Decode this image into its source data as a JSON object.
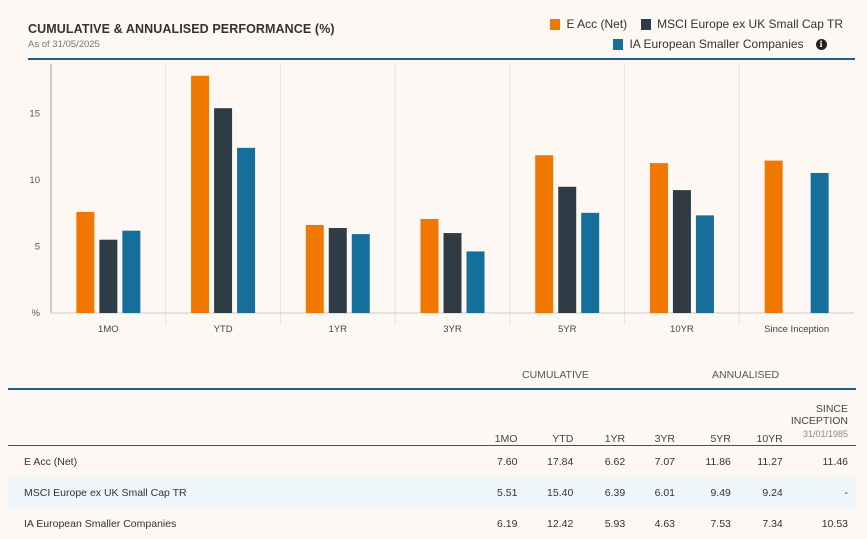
{
  "header": {
    "title": "CUMULATIVE & ANNUALISED PERFORMANCE (%)",
    "as_of": "As of 31/05/2025"
  },
  "legend": {
    "items": [
      {
        "label": "E Acc (Net)",
        "color": "#f07800"
      },
      {
        "label": "MSCI Europe ex UK Small Cap TR",
        "color": "#2f3c45"
      },
      {
        "label": "IA European Smaller Companies",
        "color": "#156f9a"
      }
    ],
    "info_icon": "info-icon"
  },
  "chart_data": {
    "type": "bar",
    "categories": [
      "1MO",
      "YTD",
      "1YR",
      "3YR",
      "5YR",
      "10YR",
      "Since Inception"
    ],
    "series": [
      {
        "name": "E Acc (Net)",
        "color": "#f07800",
        "values": [
          7.6,
          17.84,
          6.62,
          7.07,
          11.86,
          11.27,
          11.46
        ]
      },
      {
        "name": "MSCI Europe ex UK Small Cap TR",
        "color": "#2f3c45",
        "values": [
          5.51,
          15.4,
          6.39,
          6.01,
          9.49,
          9.24,
          null
        ]
      },
      {
        "name": "IA European Smaller Companies",
        "color": "#156f9a",
        "values": [
          6.19,
          12.42,
          5.93,
          4.63,
          7.53,
          7.34,
          10.53
        ]
      }
    ],
    "ylabel": "%",
    "yticks": [
      5,
      10,
      15
    ],
    "ylim": [
      0,
      19
    ],
    "grid": "vertical separators"
  },
  "table": {
    "group_cumulative": "CUMULATIVE",
    "group_annualised": "ANNUALISED",
    "columns": [
      "1MO",
      "YTD",
      "1YR",
      "3YR",
      "5YR",
      "10YR",
      "SINCE",
      "INCEPTION"
    ],
    "inception_date": "31/01/1985",
    "rows": [
      {
        "name": "E Acc (Net)",
        "values": [
          "7.60",
          "17.84",
          "6.62",
          "7.07",
          "11.86",
          "11.27",
          "11.46"
        ]
      },
      {
        "name": "MSCI Europe ex UK Small Cap TR",
        "values": [
          "5.51",
          "15.40",
          "6.39",
          "6.01",
          "9.49",
          "9.24",
          "-"
        ]
      },
      {
        "name": "IA European Smaller Companies",
        "values": [
          "6.19",
          "12.42",
          "5.93",
          "4.63",
          "7.53",
          "7.34",
          "10.53"
        ]
      }
    ]
  }
}
